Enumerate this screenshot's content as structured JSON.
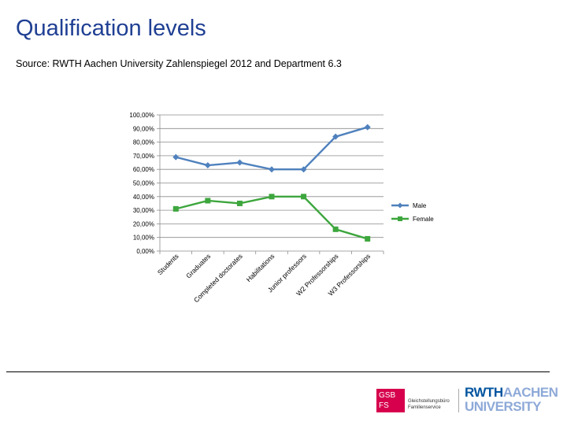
{
  "header": {
    "title": "Qualification levels",
    "source": "Source: RWTH Aachen University Zahlenspiegel 2012 and Department 6.3"
  },
  "chart_data": {
    "type": "line",
    "title": "",
    "xlabel": "",
    "ylabel": "",
    "ylim": [
      0,
      1
    ],
    "y_ticks": [
      "0,00%",
      "10,00%",
      "20,00%",
      "30,00%",
      "40,00%",
      "50,00%",
      "60,00%",
      "70,00%",
      "80,00%",
      "90,00%",
      "100,00%"
    ],
    "categories": [
      "Students",
      "Graduates",
      "Completed doctorates",
      "Habilitations",
      "Junior professors",
      "W2 Professorships",
      "W3 Professorships"
    ],
    "series": [
      {
        "name": "Male",
        "color": "#4f81bd",
        "marker": "diamond",
        "values": [
          0.69,
          0.63,
          0.65,
          0.6,
          0.6,
          0.84,
          0.91
        ]
      },
      {
        "name": "Female",
        "color": "#3da63d",
        "marker": "square",
        "values": [
          0.31,
          0.37,
          0.35,
          0.4,
          0.4,
          0.16,
          0.09
        ]
      }
    ],
    "legend_position": "right"
  },
  "footer": {
    "logo_gsb_line1": "GSB",
    "logo_gsb_line2": "FS",
    "logo_gsb_text_1": "Gleichstellungsbüro",
    "logo_gsb_text_2": "Familienservice",
    "logo_rwth_word": "RWTH",
    "logo_rwth_aachen": "AACHEN",
    "logo_rwth_university": "UNIVERSITY"
  }
}
